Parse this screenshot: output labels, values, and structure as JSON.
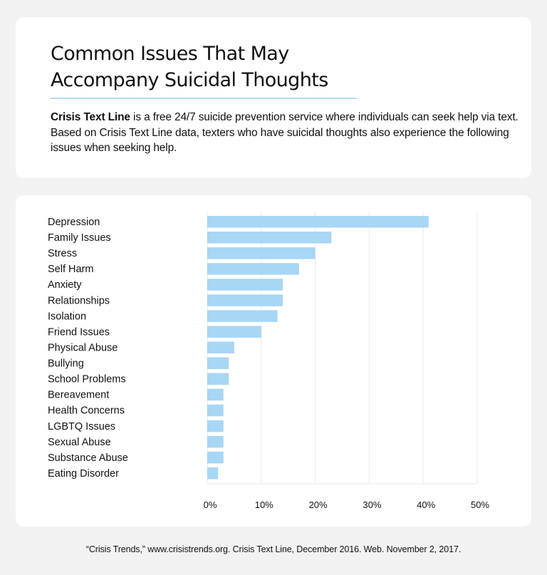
{
  "header": {
    "title_line1": "Common Issues That May",
    "title_line2": "Accompany Suicidal Thoughts",
    "description_bold": "Crisis Text Line",
    "description_rest": " is a free 24/7 suicide prevention service where individuals can seek help via text. Based on Crisis Text Line data, texters who have suicidal thoughts also experience the following issues when seeking help."
  },
  "colors": {
    "bar": "#a8d6f5",
    "accent_rule": "#b3dcf5",
    "grid": "#ececec",
    "background": "#f2f2f2"
  },
  "chart_data": {
    "type": "bar",
    "orientation": "horizontal",
    "title": "Common Issues That May Accompany Suicidal Thoughts",
    "xlabel": "",
    "ylabel": "",
    "categories": [
      "Depression",
      "Family Issues",
      "Stress",
      "Self Harm",
      "Anxiety",
      "Relationships",
      "Isolation",
      "Friend Issues",
      "Physical Abuse",
      "Bullying",
      "School Problems",
      "Bereavement",
      "Health Concerns",
      "LGBTQ Issues",
      "Sexual Abuse",
      "Substance Abuse",
      "Eating Disorder"
    ],
    "values": [
      41,
      23,
      20,
      17,
      14,
      14,
      13,
      10,
      5,
      4,
      4,
      3,
      3,
      3,
      3,
      3,
      2
    ],
    "unit": "%",
    "xlim": [
      0,
      50
    ],
    "x_ticks": [
      0,
      10,
      20,
      30,
      40,
      50
    ],
    "x_tick_labels": [
      "0%",
      "10%",
      "20%",
      "30%",
      "40%",
      "50%"
    ],
    "grid": true,
    "legend": "none"
  },
  "footer": {
    "citation": "“Crisis Trends,” www.crisistrends.org. Crisis Text Line, December 2016. Web. November 2, 2017."
  }
}
